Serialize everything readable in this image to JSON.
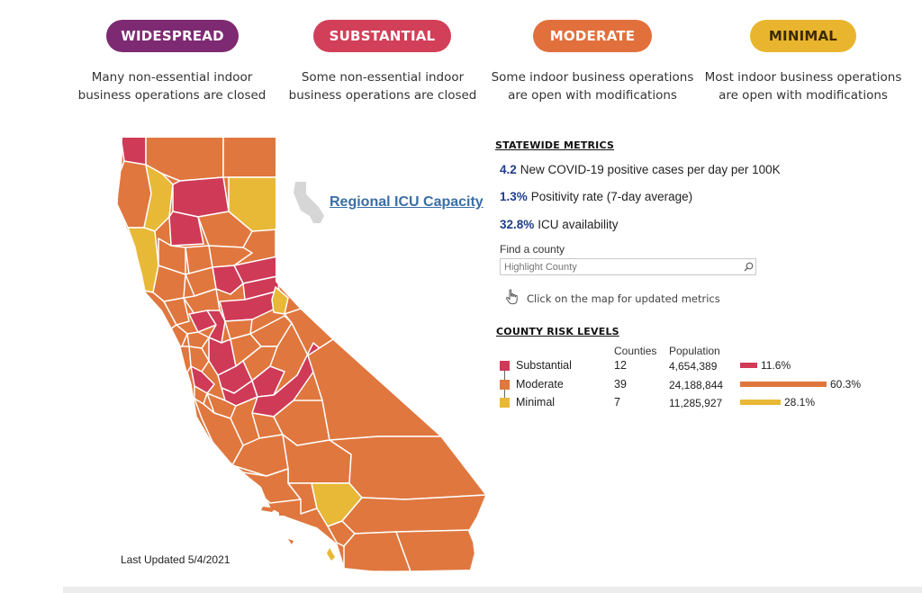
{
  "tiers": [
    {
      "label": "WIDESPREAD",
      "color": "#7d2a72",
      "description_line1": "Many non-essential indoor",
      "description_line2": "business operations are closed"
    },
    {
      "label": "SUBSTANTIAL",
      "color": "#d23f58",
      "description_line1": "Some non-essential indoor",
      "description_line2": "business operations are closed"
    },
    {
      "label": "MODERATE",
      "color": "#e2703c",
      "description_line1": "Some indoor business operations",
      "description_line2": "are open with modifications"
    },
    {
      "label": "MINIMAL",
      "color": "#eab52e",
      "description_line1": "Most indoor business operations",
      "description_line2": "are open with modifications"
    }
  ],
  "map": {
    "icu_link": "Regional ICU Capacity",
    "last_updated": "Last Updated 5/4/2021",
    "colors": {
      "substantial": "#cf3a57",
      "moderate": "#e0773e",
      "minimal": "#e8b837",
      "border": "#ffffff",
      "inset": "#d6d6d6"
    }
  },
  "statewide": {
    "heading": "STATEWIDE METRICS",
    "metrics": [
      {
        "value": "4.2",
        "label": "New COVID-19 positive cases per day per 100K"
      },
      {
        "value": "1.3%",
        "label": "Positivity rate (7-day average)"
      },
      {
        "value": "32.8%",
        "label": "ICU availability"
      }
    ]
  },
  "search": {
    "label": "Find a county",
    "placeholder": "Highlight County",
    "icon": "search-icon",
    "hint": "Click on the map for updated metrics",
    "hint_icon": "pointer-hand-icon"
  },
  "risk_levels": {
    "heading": "COUNTY RISK LEVELS",
    "col_counties": "Counties",
    "col_population": "Population",
    "rows": [
      {
        "level": "Substantial",
        "counties": "12",
        "population": "4,654,389",
        "percent": "11.6%",
        "share": 0.116,
        "color": "#cf3a57"
      },
      {
        "level": "Moderate",
        "counties": "39",
        "population": "24,188,844",
        "percent": "60.3%",
        "share": 0.603,
        "color": "#e0773e"
      },
      {
        "level": "Minimal",
        "counties": "7",
        "population": "11,285,927",
        "percent": "28.1%",
        "share": 0.281,
        "color": "#e8b837"
      }
    ]
  }
}
